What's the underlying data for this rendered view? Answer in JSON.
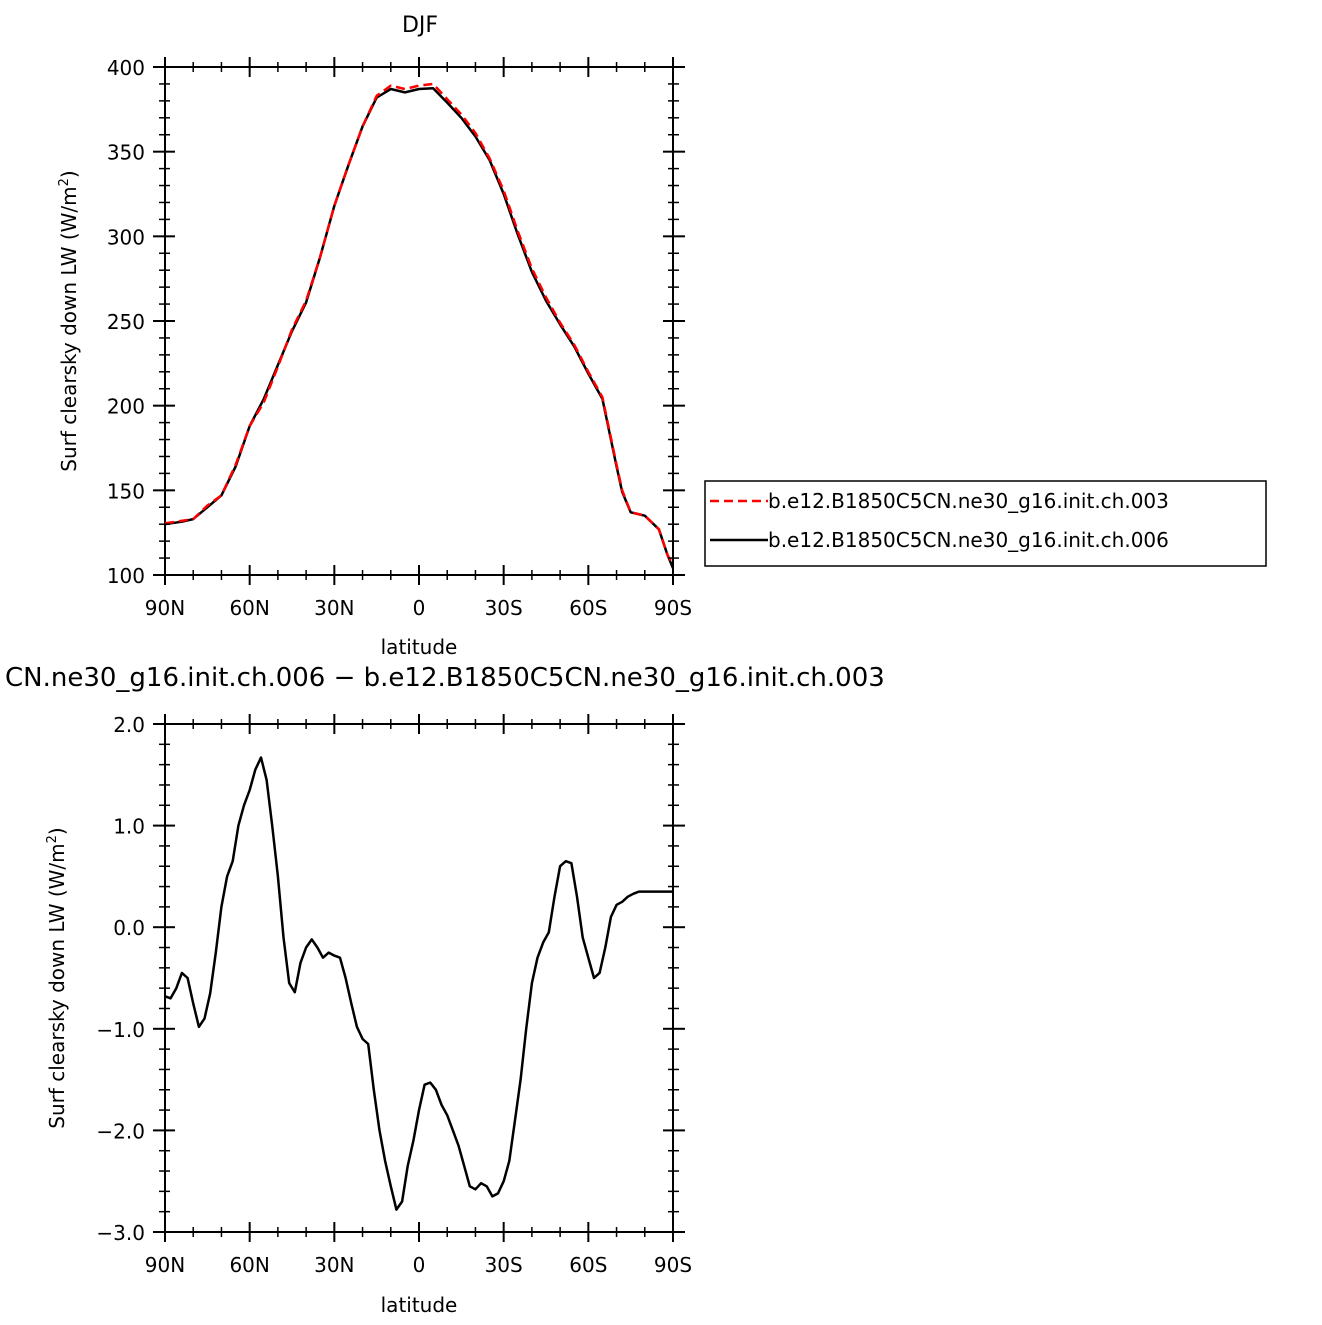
{
  "chart_data": [
    {
      "type": "line",
      "title": "DJF",
      "xlabel": "latitude",
      "ylabel": "Surf  clearsky  down  LW  (W/m",
      "ylabel_sup": "2",
      "ylabel_close": ")",
      "xlim": [
        90,
        -90
      ],
      "ylim": [
        100,
        400
      ],
      "x_ticks": [
        90,
        60,
        30,
        0,
        -30,
        -60,
        -90
      ],
      "x_tick_labels": [
        "90N",
        "60N",
        "30N",
        "0",
        "30S",
        "60S",
        "90S"
      ],
      "y_ticks": [
        100,
        150,
        200,
        250,
        300,
        350,
        400
      ],
      "y_tick_labels": [
        "100",
        "150",
        "200",
        "250",
        "300",
        "350",
        "400"
      ],
      "legend_position": "right",
      "series": [
        {
          "name": "b.e12.B1850C5CN.ne30_g16.init.ch.003",
          "color": "#ff0000",
          "dash": "dashed",
          "x": [
            90,
            84,
            80,
            75,
            70,
            65,
            60,
            55,
            50,
            45,
            40,
            35,
            30,
            25,
            20,
            15,
            10,
            5,
            0,
            -5,
            -10,
            -15,
            -20,
            -25,
            -30,
            -35,
            -40,
            -45,
            -50,
            -55,
            -60,
            -65,
            -70,
            -72,
            -75,
            -80,
            -85,
            -88,
            -90
          ],
          "y": [
            130.5,
            132,
            133,
            141,
            147,
            165,
            188,
            202,
            223,
            245,
            262,
            288,
            318,
            342,
            365,
            383,
            389,
            387,
            389,
            390,
            381,
            372,
            361,
            346,
            327,
            303,
            281,
            264,
            249,
            236,
            220,
            205,
            165,
            150,
            137,
            135,
            127,
            112,
            106
          ]
        },
        {
          "name": "b.e12.B1850C5CN.ne30_g16.init.ch.006",
          "color": "#000000",
          "dash": "solid",
          "x": [
            90,
            84,
            80,
            75,
            70,
            65,
            60,
            55,
            50,
            45,
            40,
            35,
            30,
            25,
            20,
            15,
            10,
            5,
            0,
            -5,
            -10,
            -15,
            -20,
            -25,
            -30,
            -35,
            -40,
            -45,
            -50,
            -55,
            -60,
            -65,
            -70,
            -72,
            -75,
            -80,
            -85,
            -88,
            -90
          ],
          "y": [
            130,
            131.5,
            133,
            140,
            147,
            164,
            188,
            204,
            224,
            244,
            261,
            288,
            318,
            342,
            365,
            382,
            387,
            385,
            387,
            387.5,
            379,
            370,
            359,
            345,
            325,
            301,
            279,
            262,
            248,
            235,
            219,
            204,
            164,
            149,
            137,
            135,
            127,
            112,
            104
          ]
        }
      ]
    },
    {
      "type": "line",
      "title": "CN.ne30_g16.init.ch.006  −  b.e12.B1850C5CN.ne30_g16.init.ch.003",
      "xlabel": "latitude",
      "ylabel": "Surf  clearsky  down  LW  (W/m",
      "ylabel_sup": "2",
      "ylabel_close": ")",
      "xlim": [
        90,
        -90
      ],
      "ylim": [
        -3.0,
        2.0
      ],
      "x_ticks": [
        90,
        60,
        30,
        0,
        -30,
        -60,
        -90
      ],
      "x_tick_labels": [
        "90N",
        "60N",
        "30N",
        "0",
        "30S",
        "60S",
        "90S"
      ],
      "y_ticks": [
        -3.0,
        -2.0,
        -1.0,
        0.0,
        1.0,
        2.0
      ],
      "y_tick_labels": [
        "−3.0",
        "−2.0",
        "−1.0",
        "0.0",
        "1.0",
        "2.0"
      ],
      "series": [
        {
          "color": "#000000",
          "dash": "solid",
          "x": [
            90,
            88,
            86,
            84,
            82,
            80,
            78,
            76,
            74,
            72,
            70,
            68,
            66,
            64,
            62,
            60,
            58,
            56,
            54,
            52,
            50,
            48,
            46,
            44,
            42,
            40,
            38,
            36,
            34,
            32,
            30,
            28,
            26,
            24,
            22,
            20,
            18,
            16,
            14,
            12,
            10,
            8,
            6,
            4,
            2,
            0,
            -2,
            -4,
            -6,
            -8,
            -10,
            -12,
            -14,
            -16,
            -18,
            -20,
            -22,
            -24,
            -26,
            -28,
            -30,
            -32,
            -34,
            -36,
            -38,
            -40,
            -42,
            -44,
            -46,
            -48,
            -50,
            -52,
            -54,
            -56,
            -58,
            -60,
            -62,
            -64,
            -66,
            -68,
            -70,
            -72,
            -74,
            -76,
            -78,
            -80,
            -82,
            -84,
            -86,
            -88,
            -90
          ],
          "y": [
            -0.68,
            -0.7,
            -0.6,
            -0.45,
            -0.5,
            -0.75,
            -0.98,
            -0.9,
            -0.65,
            -0.25,
            0.2,
            0.5,
            0.65,
            1.0,
            1.2,
            1.35,
            1.55,
            1.67,
            1.45,
            1.0,
            0.5,
            -0.1,
            -0.55,
            -0.64,
            -0.35,
            -0.2,
            -0.12,
            -0.2,
            -0.3,
            -0.25,
            -0.28,
            -0.3,
            -0.5,
            -0.75,
            -0.98,
            -1.1,
            -1.15,
            -1.6,
            -2.0,
            -2.3,
            -2.55,
            -2.78,
            -2.7,
            -2.35,
            -2.1,
            -1.8,
            -1.55,
            -1.53,
            -1.6,
            -1.75,
            -1.85,
            -2.0,
            -2.15,
            -2.35,
            -2.55,
            -2.58,
            -2.52,
            -2.55,
            -2.65,
            -2.62,
            -2.5,
            -2.3,
            -1.9,
            -1.5,
            -1.0,
            -0.55,
            -0.3,
            -0.15,
            -0.05,
            0.3,
            0.6,
            0.65,
            0.63,
            0.3,
            -0.1,
            -0.3,
            -0.5,
            -0.45,
            -0.2,
            0.1,
            0.22,
            0.25,
            0.3,
            0.33,
            0.35,
            0.35,
            0.35,
            0.35,
            0.35,
            0.35,
            0.35
          ]
        }
      ]
    }
  ]
}
